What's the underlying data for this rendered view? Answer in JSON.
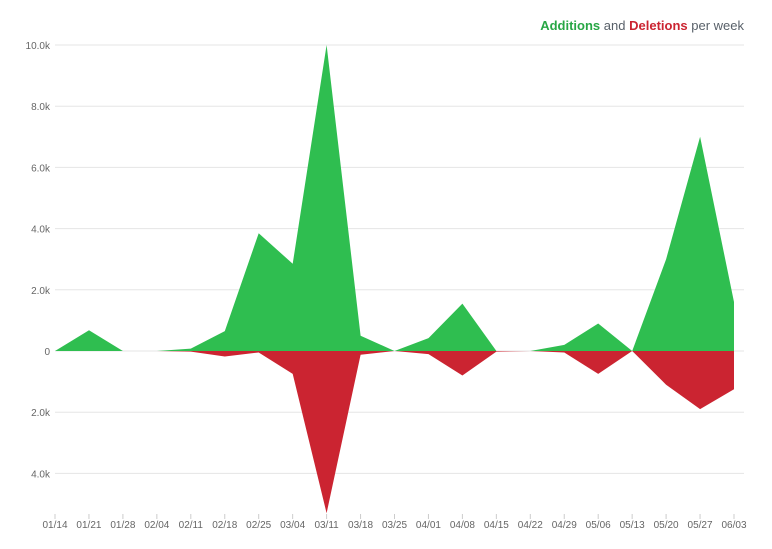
{
  "legend": {
    "additions": "Additions",
    "and": "and",
    "deletions": "Deletions",
    "suffix": "per week"
  },
  "colors": {
    "additions": "#2fbe50",
    "deletions": "#cb2431"
  },
  "chart_data": {
    "type": "area",
    "title": "",
    "categories": [
      "01/14",
      "01/21",
      "01/28",
      "02/04",
      "02/11",
      "02/18",
      "02/25",
      "03/04",
      "03/11",
      "03/18",
      "03/25",
      "04/01",
      "04/08",
      "04/15",
      "04/22",
      "04/29",
      "05/06",
      "05/13",
      "05/20",
      "05/27",
      "06/03"
    ],
    "y_ticks": [
      {
        "value": 10000,
        "label": "10.0k"
      },
      {
        "value": 8000,
        "label": "8.0k"
      },
      {
        "value": 6000,
        "label": "6.0k"
      },
      {
        "value": 4000,
        "label": "4.0k"
      },
      {
        "value": 2000,
        "label": "2.0k"
      },
      {
        "value": 0,
        "label": "0"
      },
      {
        "value": -2000,
        "label": "2.0k"
      },
      {
        "value": -4000,
        "label": "4.0k"
      }
    ],
    "ylim": [
      -5300,
      10000
    ],
    "grid": true,
    "legend_position": "top-right",
    "series": [
      {
        "name": "Additions",
        "values": [
          0,
          680,
          0,
          0,
          80,
          650,
          3850,
          2850,
          10000,
          500,
          0,
          420,
          1550,
          0,
          0,
          200,
          900,
          0,
          3000,
          7000,
          1600
        ]
      },
      {
        "name": "Deletions",
        "values": [
          0,
          0,
          0,
          0,
          -20,
          -180,
          -50,
          -750,
          -5300,
          -120,
          0,
          -100,
          -800,
          -20,
          0,
          -50,
          -750,
          0,
          -1100,
          -1900,
          -1250
        ]
      }
    ]
  }
}
